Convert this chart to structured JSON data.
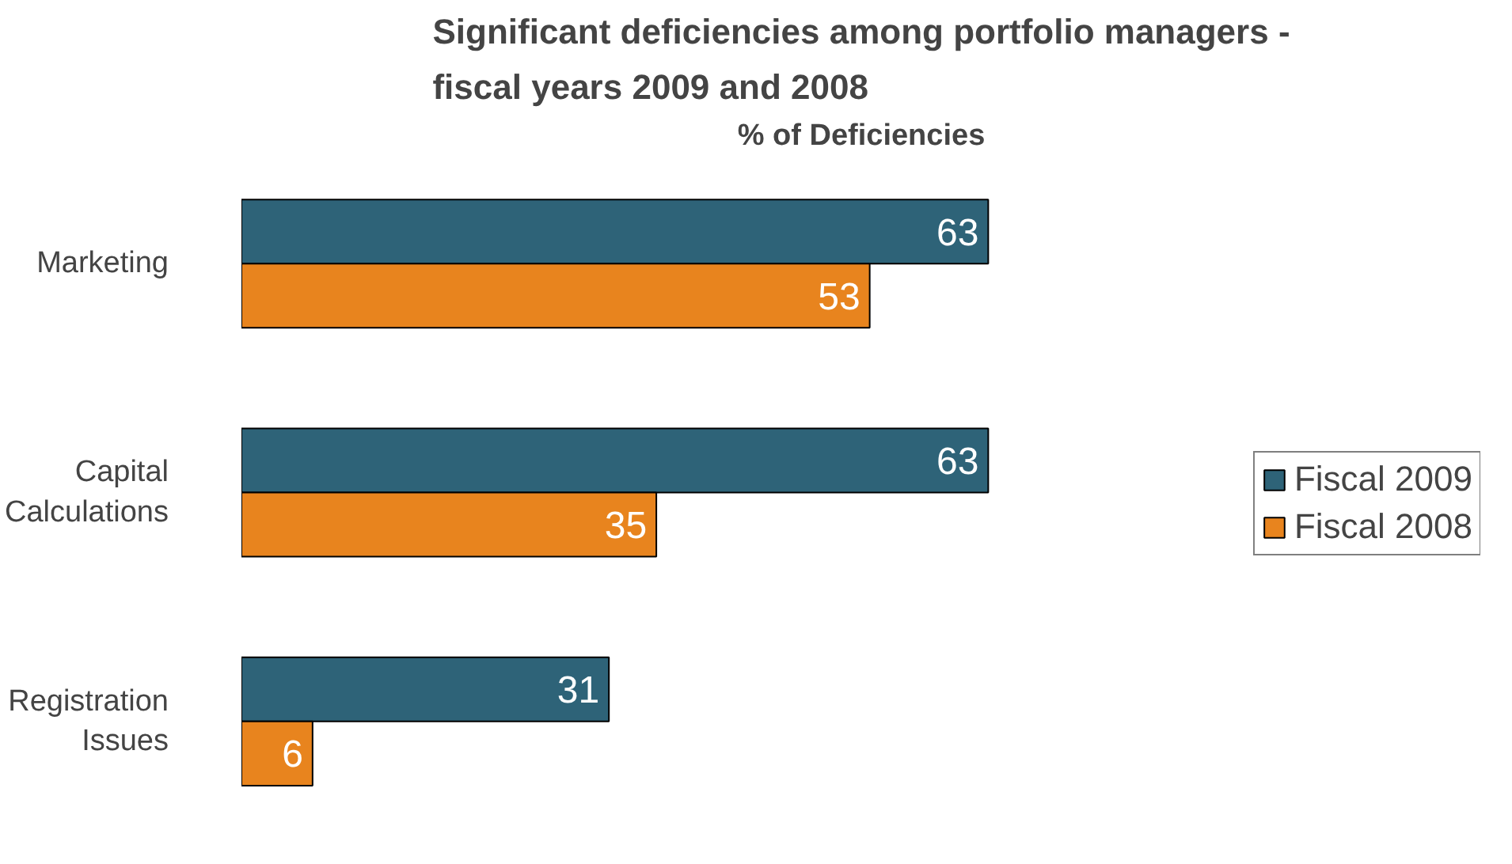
{
  "chart_data": {
    "type": "bar",
    "orientation": "horizontal",
    "title": "Significant deficiencies among portfolio managers -\nfiscal years 2009 and 2008",
    "xlabel": "% of Deficiencies",
    "categories": [
      "Marketing",
      "Capital Calculations",
      "Registration Issues"
    ],
    "series": [
      {
        "name": "Fiscal 2009",
        "color": "#2e6378",
        "values": [
          63,
          63,
          31
        ]
      },
      {
        "name": "Fiscal 2008",
        "color": "#e8841e",
        "values": [
          53,
          35,
          6
        ]
      }
    ],
    "tick_labels": "y",
    "data_labels": true,
    "legend": "right",
    "grid": false
  }
}
